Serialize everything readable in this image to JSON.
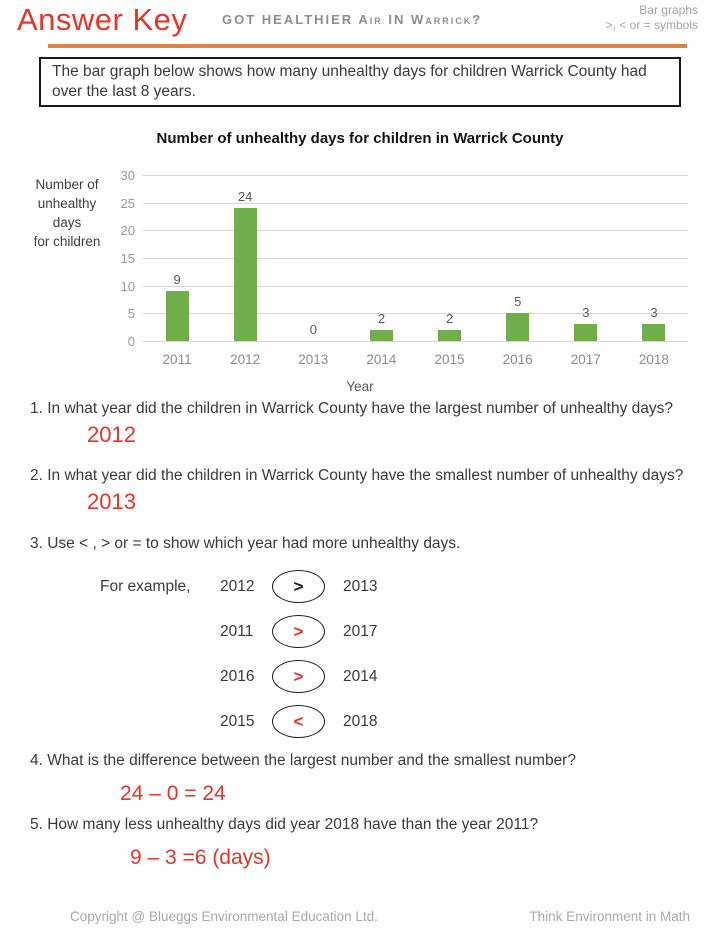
{
  "header": {
    "answer_key": "Answer Key",
    "worksheet_title": "GOT HEALTHIER Air IN Warrick?",
    "topic_line1": "Bar graphs",
    "topic_line2": ">, < or = symbols",
    "rule_color": "#df8142"
  },
  "intro": {
    "text": "The bar graph below shows how many unhealthy days for children Warrick County had over the last 8 years."
  },
  "chart_data": {
    "type": "bar",
    "title": "Number of unhealthy days for children in Warrick County",
    "categories": [
      "2011",
      "2012",
      "2013",
      "2014",
      "2015",
      "2016",
      "2017",
      "2018"
    ],
    "values": [
      9,
      24,
      0,
      2,
      2,
      5,
      3,
      3
    ],
    "xlabel": "Year",
    "ylabel": "Number of\nunhealthy\ndays\nfor children",
    "ylim": [
      0,
      30
    ],
    "yticks": [
      0,
      5,
      10,
      15,
      20,
      25,
      30
    ],
    "bar_color": "#6fae4a",
    "grid": true,
    "value_labels": true,
    "legend": "none"
  },
  "questions": {
    "q1": {
      "text": "1. In what year did the children in Warrick County have the largest number of unhealthy days?",
      "answer": "2012"
    },
    "q2": {
      "text": "2. In what year did the children in Warrick County have the smallest number of unhealthy days?",
      "answer": "2013"
    },
    "q3": {
      "text": "3. Use < , > or = to show which year had more unhealthy days.",
      "example_label": "For example,",
      "rows": [
        {
          "left": "2012",
          "symbol": ">",
          "right": "2013",
          "symbol_color": "#1a1a1a"
        },
        {
          "left": "2011",
          "symbol": ">",
          "right": "2017",
          "symbol_color": "#e8332b"
        },
        {
          "left": "2016",
          "symbol": ">",
          "right": "2014",
          "symbol_color": "#e8332b"
        },
        {
          "left": "2015",
          "symbol": "<",
          "right": "2018",
          "symbol_color": "#e8332b"
        }
      ]
    },
    "q4": {
      "text": "4. What is the difference between the largest number and the smallest number?",
      "answer": "24 – 0 = 24"
    },
    "q5": {
      "text": "5. How many less unhealthy days did year 2018 have than the year 2011?",
      "answer": "9 – 3 =6 (days)"
    }
  },
  "answer_color": "#e8332b",
  "footer": {
    "copyright": "Copyright @ Blueggs Environmental Education Ltd.",
    "tagline": "Think Environment in Math"
  }
}
